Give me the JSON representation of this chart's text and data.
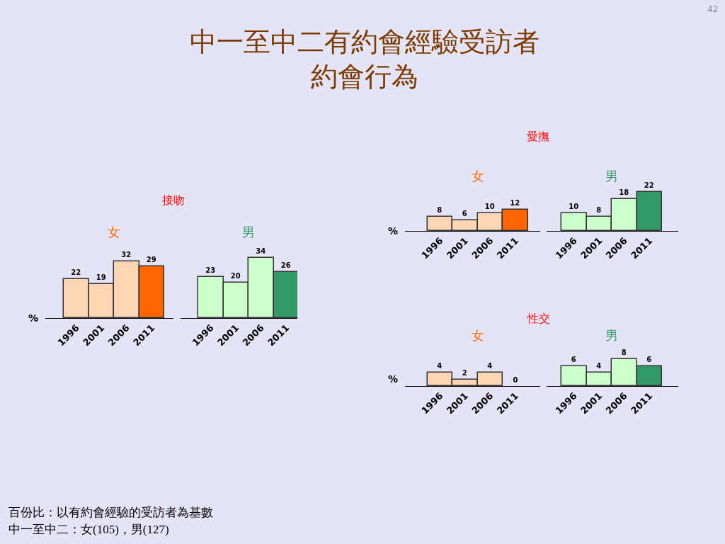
{
  "chart_data": [
    {
      "type": "bar",
      "title": "女",
      "ylabel": "%",
      "categories": [
        "1996",
        "2001",
        "2006",
        "2011"
      ],
      "data_labels": true,
      "colors": [
        "#fcd5b4",
        "#fcd5b4",
        "#fcd5b4",
        "#ff6600"
      ],
      "values": [
        22,
        19,
        32,
        29
      ]
    },
    {
      "type": "bar",
      "title": "男",
      "categories": [
        "1996",
        "2001",
        "2006",
        "2011"
      ],
      "data_labels": true,
      "colors": [
        "#ccffcc",
        "#ccffcc",
        "#ccffcc",
        "#339966"
      ],
      "values": [
        23,
        20,
        34,
        26
      ]
    },
    {
      "type": "bar",
      "title": "女",
      "ylabel": "%",
      "categories": [
        "1996",
        "2001",
        "2006",
        "2011"
      ],
      "data_labels": true,
      "colors": [
        "#fcd5b4",
        "#fcd5b4",
        "#fcd5b4",
        "#ff6600"
      ],
      "values": [
        8,
        6,
        10,
        12
      ]
    },
    {
      "type": "bar",
      "title": "男",
      "categories": [
        "1996",
        "2001",
        "2006",
        "2011"
      ],
      "data_labels": true,
      "colors": [
        "#ccffcc",
        "#ccffcc",
        "#ccffcc",
        "#339966"
      ],
      "values": [
        10,
        8,
        18,
        22
      ]
    },
    {
      "type": "bar",
      "title": "女",
      "ylabel": "%",
      "categories": [
        "1996",
        "2001",
        "2006",
        "2011"
      ],
      "data_labels": true,
      "colors": [
        "#fcd5b4",
        "#fcd5b4",
        "#fcd5b4",
        "#ff6600"
      ],
      "values": [
        4,
        2,
        4,
        0
      ]
    },
    {
      "type": "bar",
      "title": "男",
      "categories": [
        "1996",
        "2001",
        "2006",
        "2011"
      ],
      "data_labels": true,
      "colors": [
        "#ccffcc",
        "#ccffcc",
        "#ccffcc",
        "#339966"
      ],
      "values": [
        6,
        4,
        8,
        6
      ]
    },
    {
      "type": "other",
      "title": "中一至中二有約會經驗受訪者約會行為",
      "annotations": [
        "42",
        "接吻",
        "愛撫",
        "性交",
        "百份比：以有約會經驗的受訪者為基數",
        "中一至中二：女(105)，男(127)"
      ]
    }
  ]
}
